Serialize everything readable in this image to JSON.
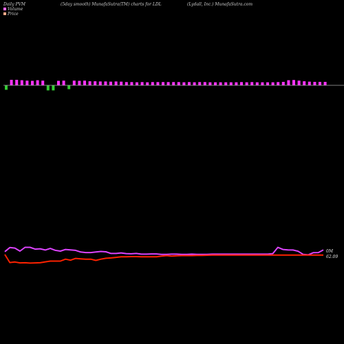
{
  "header": {
    "left": "Daily PVM",
    "center": "(5day smooth) MunafaSutra(TM) charts for LDL",
    "right": "(Lydall, Inc.) MunafaSutra.com"
  },
  "legend": [
    {
      "label": "Volume",
      "color": "#ff66ff"
    },
    {
      "label": "Price",
      "color": "#ffaa88"
    }
  ],
  "chart_data": {
    "type": "line",
    "ticker": "LDL",
    "colors": {
      "volume_up": "#ff33ff",
      "volume_down": "#33cc33",
      "volume_line": "#dd44ff",
      "price_line": "#ff2200",
      "baseline": "#aaaaaa"
    },
    "volume_bars": {
      "direction": [
        "down",
        "up",
        "up",
        "up",
        "up",
        "up",
        "up",
        "up",
        "down",
        "down",
        "up",
        "up",
        "down",
        "up",
        "up",
        "up",
        "up",
        "up",
        "up",
        "up",
        "up",
        "up",
        "up",
        "up",
        "up",
        "up",
        "up",
        "up",
        "up",
        "up",
        "up",
        "up",
        "up",
        "up",
        "up",
        "up",
        "up",
        "up",
        "up",
        "up",
        "up",
        "up",
        "up",
        "up",
        "up",
        "up",
        "up",
        "up",
        "up",
        "up",
        "up",
        "up",
        "up",
        "up",
        "up",
        "up",
        "up",
        "up",
        "up",
        "up",
        "up",
        "up"
      ],
      "value": [
        0.75,
        1.0,
        1.0,
        0.9,
        0.8,
        0.75,
        0.9,
        0.8,
        0.9,
        0.9,
        0.75,
        0.8,
        0.6,
        0.8,
        0.75,
        0.8,
        0.65,
        0.65,
        0.6,
        0.6,
        0.55,
        0.6,
        0.55,
        0.45,
        0.45,
        0.4,
        0.45,
        0.4,
        0.45,
        0.45,
        0.45,
        0.45,
        0.45,
        0.45,
        0.4,
        0.45,
        0.4,
        0.45,
        0.45,
        0.4,
        0.4,
        0.4,
        0.4,
        0.4,
        0.4,
        0.45,
        0.4,
        0.45,
        0.4,
        0.4,
        0.4,
        0.4,
        0.45,
        0.5,
        0.9,
        0.95,
        0.8,
        0.65,
        0.55,
        0.5,
        0.5,
        0.5
      ]
    },
    "volume_line": [
      0.74,
      0.97,
      0.94,
      0.77,
      0.98,
      0.98,
      0.88,
      0.9,
      0.83,
      0.92,
      0.81,
      0.77,
      0.86,
      0.84,
      0.81,
      0.72,
      0.69,
      0.69,
      0.72,
      0.75,
      0.73,
      0.64,
      0.64,
      0.67,
      0.63,
      0.62,
      0.64,
      0.6,
      0.6,
      0.61,
      0.61,
      0.59,
      0.59,
      0.6,
      0.6,
      0.59,
      0.59,
      0.6,
      0.59,
      0.59,
      0.59,
      0.6,
      0.6,
      0.6,
      0.6,
      0.6,
      0.6,
      0.6,
      0.6,
      0.6,
      0.6,
      0.6,
      0.6,
      0.63,
      0.98,
      0.86,
      0.84,
      0.83,
      0.76,
      0.59,
      0.56,
      0.68,
      0.69,
      0.84
    ],
    "price_line": [
      0.58,
      0.13,
      0.16,
      0.11,
      0.12,
      0.1,
      0.11,
      0.12,
      0.17,
      0.21,
      0.21,
      0.21,
      0.32,
      0.26,
      0.36,
      0.34,
      0.32,
      0.32,
      0.25,
      0.32,
      0.37,
      0.39,
      0.42,
      0.45,
      0.45,
      0.46,
      0.46,
      0.45,
      0.45,
      0.45,
      0.45,
      0.49,
      0.52,
      0.49,
      0.51,
      0.52,
      0.52,
      0.52,
      0.53,
      0.53,
      0.54,
      0.55,
      0.55,
      0.55,
      0.55,
      0.55,
      0.55,
      0.55,
      0.55,
      0.55,
      0.55,
      0.55,
      0.55,
      0.55,
      0.55,
      0.55,
      0.55,
      0.55,
      0.55,
      0.55,
      0.55,
      0.55,
      0.55,
      0.55
    ],
    "last_volume_label": "0M",
    "last_price_label": "62.09"
  }
}
